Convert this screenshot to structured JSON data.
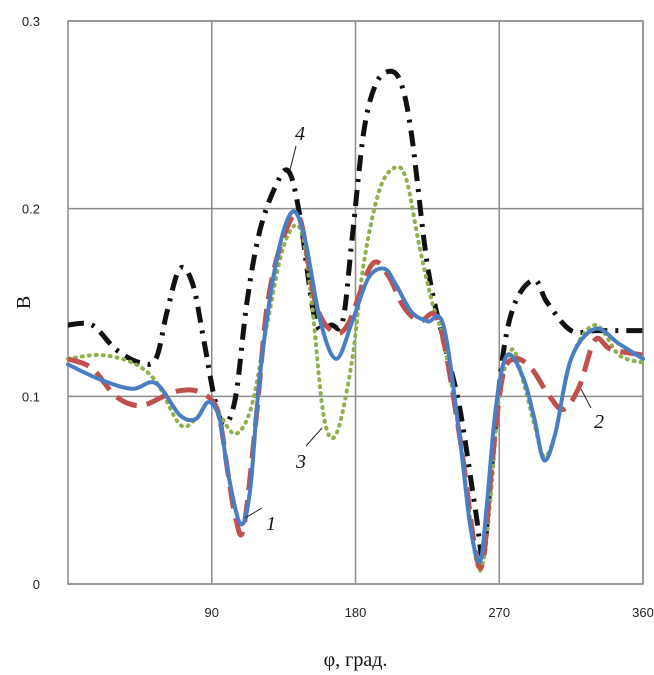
{
  "chart_data": {
    "type": "line",
    "xlabel": "φ, град.",
    "ylabel": "B",
    "xlim": [
      0,
      360
    ],
    "ylim": [
      0,
      0.3
    ],
    "x_ticks": [
      "90",
      "180",
      "270",
      "360"
    ],
    "y_ticks": [
      "0",
      "0.1",
      "0.2",
      "0.3"
    ],
    "grid": true,
    "series": [
      {
        "name": "1",
        "color": "#4a7ec2",
        "style": "solid",
        "x": [
          0,
          20,
          40,
          55,
          70,
          80,
          88,
          95,
          100,
          108,
          114,
          120,
          130,
          140,
          148,
          158,
          168,
          178,
          188,
          198,
          205,
          215,
          225,
          235,
          245,
          252,
          258,
          262,
          268,
          275,
          285,
          292,
          298,
          305,
          315,
          330,
          345,
          360
        ],
        "y": [
          0.117,
          0.109,
          0.104,
          0.107,
          0.09,
          0.088,
          0.097,
          0.088,
          0.06,
          0.032,
          0.05,
          0.11,
          0.17,
          0.198,
          0.185,
          0.14,
          0.12,
          0.14,
          0.163,
          0.168,
          0.16,
          0.145,
          0.14,
          0.138,
          0.08,
          0.03,
          0.012,
          0.04,
          0.095,
          0.122,
          0.11,
          0.088,
          0.066,
          0.08,
          0.12,
          0.136,
          0.128,
          0.12
        ]
      },
      {
        "name": "2",
        "color": "#c0504d",
        "style": "long-dash",
        "x": [
          0,
          15,
          30,
          45,
          60,
          70,
          80,
          90,
          95,
          100,
          105,
          110,
          118,
          125,
          135,
          145,
          155,
          165,
          175,
          190,
          200,
          210,
          220,
          232,
          245,
          255,
          260,
          265,
          272,
          280,
          290,
          300,
          310,
          320,
          330,
          340,
          360
        ],
        "y": [
          0.12,
          0.115,
          0.1,
          0.095,
          0.1,
          0.103,
          0.103,
          0.098,
          0.088,
          0.06,
          0.035,
          0.03,
          0.09,
          0.15,
          0.185,
          0.195,
          0.15,
          0.135,
          0.138,
          0.17,
          0.165,
          0.148,
          0.14,
          0.14,
          0.08,
          0.018,
          0.013,
          0.06,
          0.11,
          0.12,
          0.115,
          0.102,
          0.093,
          0.105,
          0.13,
          0.125,
          0.122
        ]
      },
      {
        "name": "3",
        "color": "#8fb04a",
        "style": "dotted",
        "x": [
          0,
          20,
          40,
          55,
          70,
          80,
          88,
          95,
          105,
          115,
          125,
          135,
          145,
          152,
          160,
          168,
          178,
          185,
          195,
          205,
          212,
          220,
          228,
          235,
          245,
          255,
          260,
          265,
          270,
          278,
          285,
          292,
          298,
          305,
          315,
          330,
          345,
          360
        ],
        "y": [
          0.12,
          0.122,
          0.118,
          0.108,
          0.085,
          0.088,
          0.097,
          0.09,
          0.08,
          0.095,
          0.14,
          0.18,
          0.19,
          0.155,
          0.09,
          0.08,
          0.12,
          0.17,
          0.21,
          0.222,
          0.215,
          0.18,
          0.15,
          0.13,
          0.08,
          0.015,
          0.012,
          0.05,
          0.1,
          0.125,
          0.108,
          0.085,
          0.068,
          0.08,
          0.12,
          0.138,
          0.122,
          0.118
        ]
      },
      {
        "name": "4",
        "color": "#111111",
        "style": "dash-dot",
        "x": [
          0,
          15,
          30,
          45,
          55,
          62,
          70,
          78,
          85,
          92,
          98,
          105,
          112,
          120,
          130,
          138,
          145,
          155,
          165,
          172,
          178,
          185,
          192,
          200,
          208,
          215,
          225,
          235,
          245,
          255,
          260,
          265,
          272,
          280,
          292,
          300,
          315,
          330,
          345,
          360
        ],
        "y": [
          0.138,
          0.138,
          0.125,
          0.118,
          0.12,
          0.145,
          0.168,
          0.16,
          0.13,
          0.098,
          0.085,
          0.1,
          0.15,
          0.188,
          0.212,
          0.22,
          0.197,
          0.14,
          0.138,
          0.14,
          0.185,
          0.24,
          0.265,
          0.273,
          0.268,
          0.24,
          0.17,
          0.13,
          0.095,
          0.04,
          0.015,
          0.06,
          0.12,
          0.15,
          0.162,
          0.15,
          0.135,
          0.135,
          0.135,
          0.135
        ]
      }
    ]
  }
}
